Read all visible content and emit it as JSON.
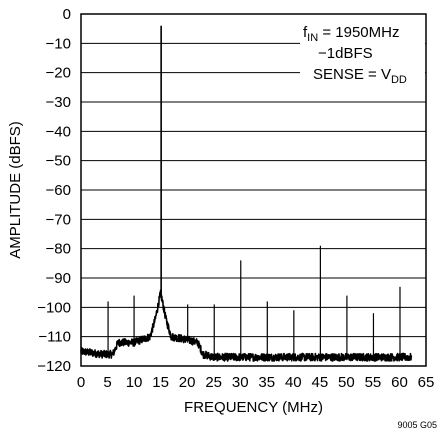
{
  "chart_data": {
    "type": "line",
    "xlabel": "FREQUENCY (MHz)",
    "ylabel": "AMPLITUDE (dBFS)",
    "xlim": [
      0,
      65
    ],
    "ylim": [
      -120,
      0
    ],
    "x_ticks": [
      0,
      5,
      10,
      15,
      20,
      25,
      30,
      35,
      40,
      45,
      50,
      55,
      60,
      65
    ],
    "y_ticks": [
      0,
      -10,
      -20,
      -30,
      -40,
      -50,
      -60,
      -70,
      -80,
      -90,
      -100,
      -110,
      -120
    ],
    "x_tick_labels": [
      "0",
      "5",
      "10",
      "15",
      "20",
      "25",
      "30",
      "35",
      "40",
      "45",
      "50",
      "55",
      "60",
      "65"
    ],
    "y_tick_labels": [
      "0",
      "−10",
      "−20",
      "−30",
      "−40",
      "−50",
      "−60",
      "−70",
      "−80",
      "−90",
      "−100",
      "−110",
      "−120"
    ],
    "grid": true,
    "annotation": {
      "line1_main": "f",
      "line1_sub": "IN",
      "line1_rest": " = 1950MHz",
      "line2": "−1dBFS",
      "line3_main": "SENSE = V",
      "line3_sub": "DD"
    },
    "figure_id": "9005 G05",
    "noise_floor": [
      [
        0,
        -115
      ],
      [
        4,
        -116
      ],
      [
        6,
        -116
      ],
      [
        7,
        -112
      ],
      [
        10,
        -112
      ],
      [
        13,
        -110
      ],
      [
        14,
        -104
      ],
      [
        15,
        -95
      ],
      [
        16,
        -104
      ],
      [
        17,
        -110
      ],
      [
        20,
        -111
      ],
      [
        22,
        -112
      ],
      [
        23,
        -116
      ],
      [
        25,
        -117
      ],
      [
        65,
        -117
      ]
    ],
    "spurs": [
      {
        "x": 0,
        "y": -94
      },
      {
        "x": 5.1,
        "y": -98
      },
      {
        "x": 10,
        "y": -96
      },
      {
        "x": 15.1,
        "y": -4
      },
      {
        "x": 20.1,
        "y": -99
      },
      {
        "x": 25.1,
        "y": -99
      },
      {
        "x": 30.1,
        "y": -84
      },
      {
        "x": 35.1,
        "y": -98
      },
      {
        "x": 40.1,
        "y": -101
      },
      {
        "x": 45.1,
        "y": -79
      },
      {
        "x": 50.1,
        "y": -96
      },
      {
        "x": 55.1,
        "y": -102
      },
      {
        "x": 60.1,
        "y": -93
      }
    ]
  }
}
